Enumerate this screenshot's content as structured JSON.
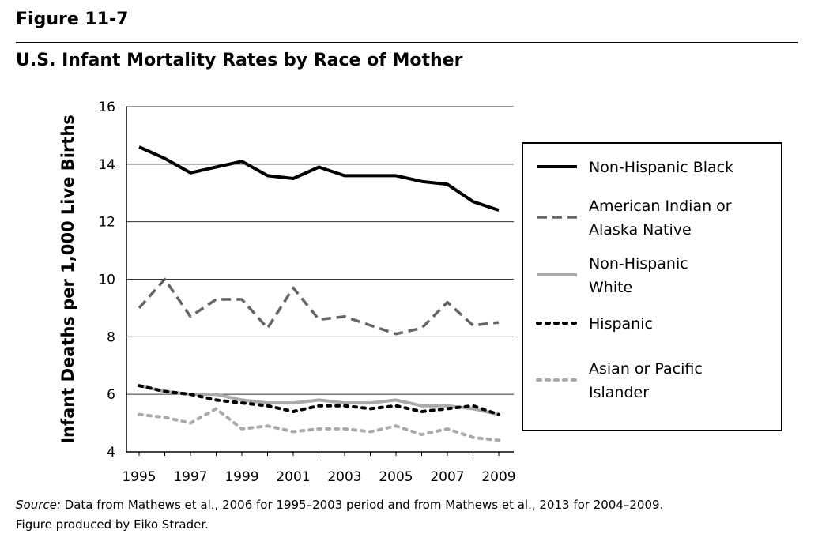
{
  "figure_label": "Figure 11-7",
  "source": {
    "label": "Source:",
    "text": " Data from Mathews et al., 2006 for 1995–2003 period and from Mathews et al., 2013 for 2004–2009.",
    "credit": "Figure produced by Eiko Strader."
  },
  "chart_data": {
    "type": "line",
    "title": "U.S. Infant Mortality Rates by Race of Mother",
    "xlabel": "",
    "ylabel": "Infant Deaths per 1,000 Live Births",
    "x": [
      1995,
      1996,
      1997,
      1998,
      1999,
      2000,
      2001,
      2002,
      2003,
      2004,
      2005,
      2006,
      2007,
      2008,
      2009
    ],
    "xticks": [
      "1995",
      "1997",
      "1999",
      "2001",
      "2003",
      "2005",
      "2007",
      "2009"
    ],
    "ylim": [
      4,
      16
    ],
    "yticks": [
      "4",
      "6",
      "8",
      "10",
      "12",
      "14",
      "16"
    ],
    "grid": "horizontal",
    "legend_position": "right",
    "series": [
      {
        "name": "Non-Hispanic Black",
        "style": "solid",
        "color": "#000000",
        "values": [
          14.6,
          14.2,
          13.7,
          13.9,
          14.1,
          13.6,
          13.5,
          13.9,
          13.6,
          13.6,
          13.6,
          13.4,
          13.3,
          12.7,
          12.4
        ]
      },
      {
        "name": "American Indian or Alaska Native",
        "style": "dashed",
        "color": "#666666",
        "values": [
          9.0,
          10.0,
          8.7,
          9.3,
          9.3,
          8.3,
          9.7,
          8.6,
          8.7,
          8.4,
          8.1,
          8.3,
          9.2,
          8.4,
          8.5
        ]
      },
      {
        "name": "Non-Hispanic White",
        "style": "solid",
        "color": "#aaaaaa",
        "values": [
          6.3,
          6.1,
          6.0,
          6.0,
          5.8,
          5.7,
          5.7,
          5.8,
          5.7,
          5.7,
          5.8,
          5.6,
          5.6,
          5.5,
          5.3
        ]
      },
      {
        "name": "Hispanic",
        "style": "dotted",
        "color": "#000000",
        "values": [
          6.3,
          6.1,
          6.0,
          5.8,
          5.7,
          5.6,
          5.4,
          5.6,
          5.6,
          5.5,
          5.6,
          5.4,
          5.5,
          5.6,
          5.3
        ]
      },
      {
        "name": "Asian or Pacific Islander",
        "style": "dotted",
        "color": "#aaaaaa",
        "values": [
          5.3,
          5.2,
          5.0,
          5.5,
          4.8,
          4.9,
          4.7,
          4.8,
          4.8,
          4.7,
          4.9,
          4.6,
          4.8,
          4.5,
          4.4
        ]
      }
    ]
  }
}
